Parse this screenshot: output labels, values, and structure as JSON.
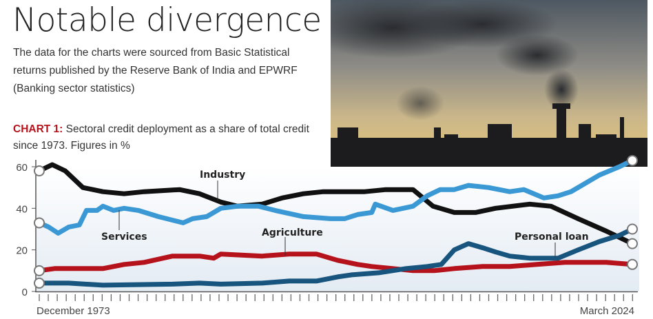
{
  "header": {
    "title": "Notable divergence",
    "description": "The data for the charts were sourced from Basic Statistical returns published by the Reserve Bank of India and EPWRF (Banking sector statistics)",
    "chart_label": "CHART 1:",
    "chart_caption": "Sectoral credit deployment as a share of total credit since 1973. Figures in %"
  },
  "colors": {
    "industry": "#111111",
    "services": "#3a98d4",
    "agriculture": "#b5121b",
    "personal_loan": "#17557e",
    "accent": "#b5121b"
  },
  "chart_data": {
    "type": "line",
    "title": "Sectoral credit deployment as a share of total credit since 1973. Figures in %",
    "xlabel": "",
    "ylabel": "%",
    "xlim": [
      1974,
      2024.3
    ],
    "ylim": [
      0,
      60
    ],
    "yticks": [
      "0",
      "20",
      "40",
      "60"
    ],
    "ytick_values": [
      0,
      20,
      40,
      60
    ],
    "x_start_label": "December 1973",
    "x_end_label": "March 2024",
    "series": [
      {
        "name": "Industry",
        "key": "industry",
        "points": [
          [
            1974,
            58
          ],
          [
            1975.1,
            61
          ],
          [
            1976.2,
            58
          ],
          [
            1977.7,
            50
          ],
          [
            1979.4,
            48
          ],
          [
            1981.2,
            47
          ],
          [
            1982.9,
            48
          ],
          [
            1985.9,
            49
          ],
          [
            1987.6,
            47
          ],
          [
            1989.4,
            43
          ],
          [
            1990.8,
            41
          ],
          [
            1992.9,
            42
          ],
          [
            1994.6,
            45
          ],
          [
            1996.4,
            47
          ],
          [
            1998.1,
            48
          ],
          [
            1999.9,
            48
          ],
          [
            2001.6,
            48
          ],
          [
            2003.4,
            49
          ],
          [
            2005.7,
            49
          ],
          [
            2007.4,
            41
          ],
          [
            2009.2,
            38
          ],
          [
            2011.0,
            38
          ],
          [
            2012.7,
            40
          ],
          [
            2015.6,
            42
          ],
          [
            2017.4,
            41
          ],
          [
            2019.7,
            35
          ],
          [
            2022.1,
            29
          ],
          [
            2024.3,
            23
          ]
        ]
      },
      {
        "name": "Services",
        "key": "services",
        "points": [
          [
            1974,
            33
          ],
          [
            1974.8,
            31
          ],
          [
            1975.6,
            28
          ],
          [
            1976.5,
            31
          ],
          [
            1977.4,
            32
          ],
          [
            1978,
            39
          ],
          [
            1978.9,
            39
          ],
          [
            1979.4,
            41
          ],
          [
            1980.3,
            39
          ],
          [
            1981.2,
            40
          ],
          [
            1982.4,
            39
          ],
          [
            1984.1,
            36
          ],
          [
            1986.2,
            33
          ],
          [
            1987,
            35
          ],
          [
            1988.2,
            36
          ],
          [
            1989.4,
            40
          ],
          [
            1990.8,
            41
          ],
          [
            1992.6,
            41
          ],
          [
            1994,
            39
          ],
          [
            1996.4,
            36
          ],
          [
            1998.7,
            35
          ],
          [
            1999.9,
            35
          ],
          [
            2001,
            37
          ],
          [
            2002.2,
            38
          ],
          [
            2002.5,
            42
          ],
          [
            2004,
            39
          ],
          [
            2005.7,
            41
          ],
          [
            2006.9,
            46
          ],
          [
            2008,
            49
          ],
          [
            2009.2,
            49
          ],
          [
            2010.4,
            51
          ],
          [
            2012.1,
            50
          ],
          [
            2013.9,
            48
          ],
          [
            2015.1,
            49
          ],
          [
            2016.8,
            45
          ],
          [
            2018,
            46
          ],
          [
            2019.1,
            48
          ],
          [
            2021.5,
            56
          ],
          [
            2023.2,
            60
          ],
          [
            2024.3,
            63
          ]
        ]
      },
      {
        "name": "Agriculture",
        "key": "agriculture",
        "points": [
          [
            1974,
            10
          ],
          [
            1975.3,
            11
          ],
          [
            1979.4,
            11
          ],
          [
            1981.2,
            13
          ],
          [
            1982.9,
            14
          ],
          [
            1985.3,
            17
          ],
          [
            1987.6,
            17
          ],
          [
            1988.8,
            16
          ],
          [
            1989.4,
            18
          ],
          [
            1992.9,
            17
          ],
          [
            1995.2,
            18
          ],
          [
            1997.5,
            18
          ],
          [
            1999.3,
            15
          ],
          [
            2001,
            13
          ],
          [
            2002.2,
            12
          ],
          [
            2004,
            11
          ],
          [
            2005.7,
            10
          ],
          [
            2007.5,
            10
          ],
          [
            2009.2,
            11
          ],
          [
            2011.6,
            12
          ],
          [
            2013.9,
            12
          ],
          [
            2016.2,
            13
          ],
          [
            2018.6,
            14
          ],
          [
            2020.3,
            14
          ],
          [
            2022.1,
            14
          ],
          [
            2024.3,
            13
          ]
        ]
      },
      {
        "name": "Personal loan",
        "key": "personal_loan",
        "points": [
          [
            1974,
            4
          ],
          [
            1976.5,
            4
          ],
          [
            1979.4,
            3
          ],
          [
            1985.3,
            3.5
          ],
          [
            1987.6,
            4
          ],
          [
            1989.4,
            3.5
          ],
          [
            1992.9,
            4
          ],
          [
            1995.2,
            5
          ],
          [
            1997.5,
            5
          ],
          [
            1999.3,
            7
          ],
          [
            2000.5,
            8
          ],
          [
            2002.8,
            9
          ],
          [
            2005.1,
            11
          ],
          [
            2006.9,
            12
          ],
          [
            2008.1,
            13
          ],
          [
            2009.2,
            20
          ],
          [
            2010.4,
            23
          ],
          [
            2011.6,
            21
          ],
          [
            2012.7,
            19
          ],
          [
            2013.9,
            17
          ],
          [
            2015.6,
            16
          ],
          [
            2018,
            16
          ],
          [
            2019.7,
            20
          ],
          [
            2021.5,
            24
          ],
          [
            2023.2,
            27
          ],
          [
            2024.3,
            30
          ]
        ]
      }
    ],
    "annotations": [
      "Industry",
      "Services",
      "Agriculture",
      "Personal loan"
    ],
    "grid": false,
    "legend": "inline labels"
  }
}
